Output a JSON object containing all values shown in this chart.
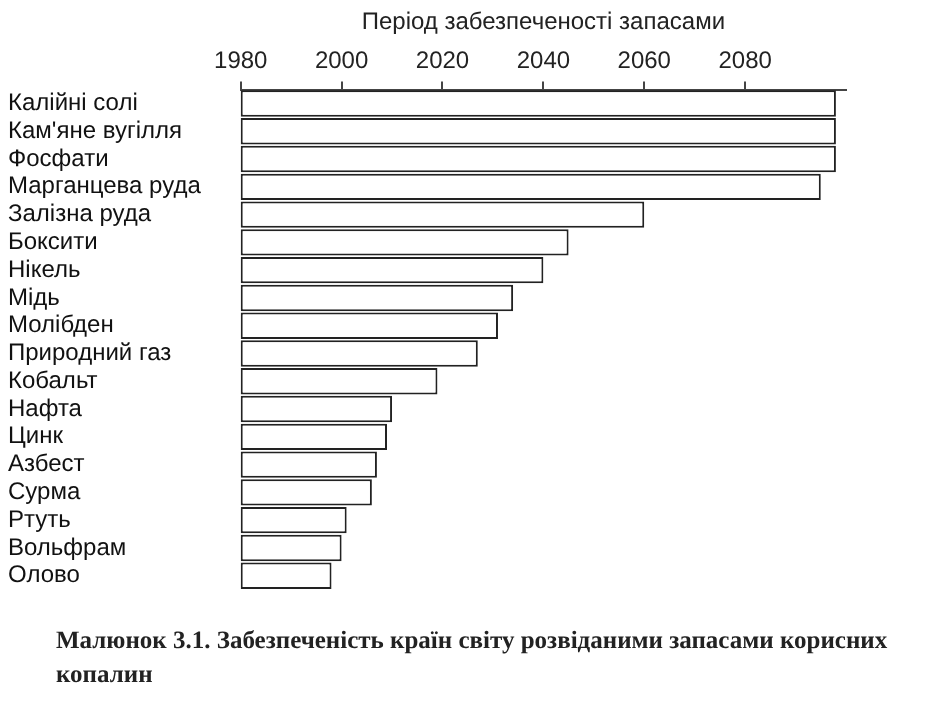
{
  "chart_data": {
    "type": "bar",
    "orientation": "horizontal",
    "xlabel": "Період забезпеченості запасами",
    "categories": [
      "Калійні солі",
      "Кам'яне вугілля",
      "Фосфати",
      "Марганцева руда",
      "Залізна руда",
      "Боксити",
      "Нікель",
      "Мідь",
      "Молібден",
      "Природний газ",
      "Кобальт",
      "Нафта",
      "Цинк",
      "Азбест",
      "Сурма",
      "Ртуть",
      "Вольфрам",
      "Олово"
    ],
    "values": [
      118,
      118,
      118,
      115,
      80,
      65,
      60,
      54,
      51,
      47,
      39,
      30,
      29,
      27,
      26,
      21,
      20,
      18
    ],
    "base": [
      1980,
      1980,
      1980,
      1980,
      1980,
      1980,
      1980,
      1980,
      1980,
      1980,
      1980,
      1980,
      1980,
      1980,
      1980,
      1980,
      1980,
      1980
    ],
    "color": "#ffffff",
    "xlim": [
      1980,
      2100
    ],
    "xticks": [
      1980,
      2000,
      2020,
      2040,
      2060,
      2080
    ],
    "grid": false,
    "annotations": [
      "Малюнок 3.1. Забезпеченість країн світу розвіданими запасами корисних копалин"
    ]
  }
}
